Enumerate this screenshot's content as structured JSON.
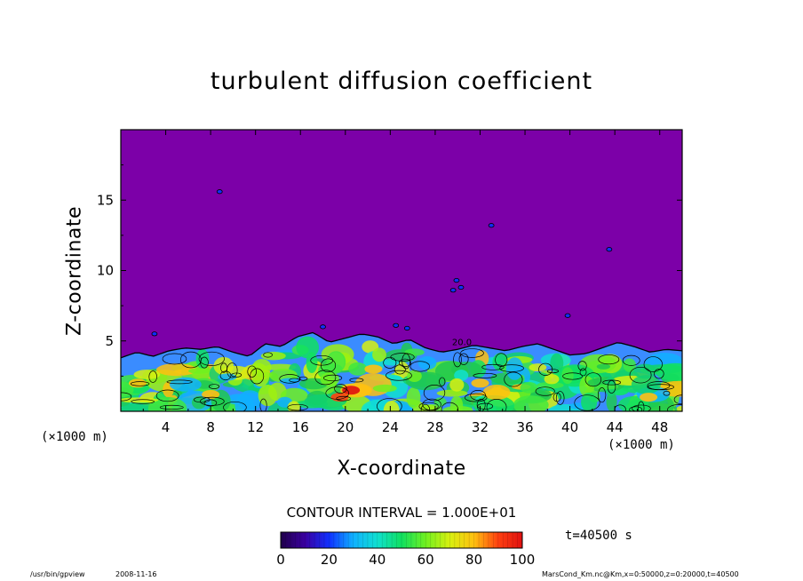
{
  "chart_data": {
    "type": "heatmap",
    "title": "turbulent diffusion coefficient",
    "xlabel": "X-coordinate",
    "ylabel": "Z-coordinate",
    "x_unit_left": "(×1000 m)",
    "x_unit_right": "(×1000 m)",
    "xlim": [
      0,
      50
    ],
    "ylim": [
      0,
      20
    ],
    "xticks": [
      4,
      8,
      12,
      16,
      20,
      24,
      28,
      32,
      36,
      40,
      44,
      48
    ],
    "yticks": [
      5,
      10,
      15
    ],
    "colorbar": {
      "range": [
        0,
        100
      ],
      "ticks": [
        0,
        20,
        40,
        60,
        80,
        100
      ],
      "colors": [
        "#20004a",
        "#3a00a0",
        "#1030ff",
        "#10b0ff",
        "#10e0d0",
        "#10e060",
        "#70f020",
        "#d8f010",
        "#ffc010",
        "#ff4010",
        "#e01010"
      ]
    },
    "background_color": "#7c00a8",
    "contour_interval": "CONTOUR INTERVAL = 1.000E+01",
    "turbulent_layer_top": [
      3.8,
      4.2,
      3.9,
      4.3,
      4.5,
      4.4,
      4.6,
      4.2,
      3.9,
      4.8,
      4.6,
      5.3,
      5.6,
      4.9,
      5.2,
      5.5,
      5.3,
      4.8,
      5.1,
      4.5,
      4.2,
      4.4,
      4.7,
      4.5,
      4.3,
      4.6,
      4.8,
      4.4,
      4.0,
      4.1,
      4.5,
      4.9,
      4.6,
      4.2,
      4.4,
      4.3
    ],
    "contour_labels": [
      "20.0"
    ]
  },
  "time_label": "t=40500 s",
  "footer": {
    "program": "/usr/bin/gpview",
    "date": "2008-11-16",
    "file": "MarsCond_Km.nc@Km,x=0:50000,z=0:20000,t=40500"
  }
}
